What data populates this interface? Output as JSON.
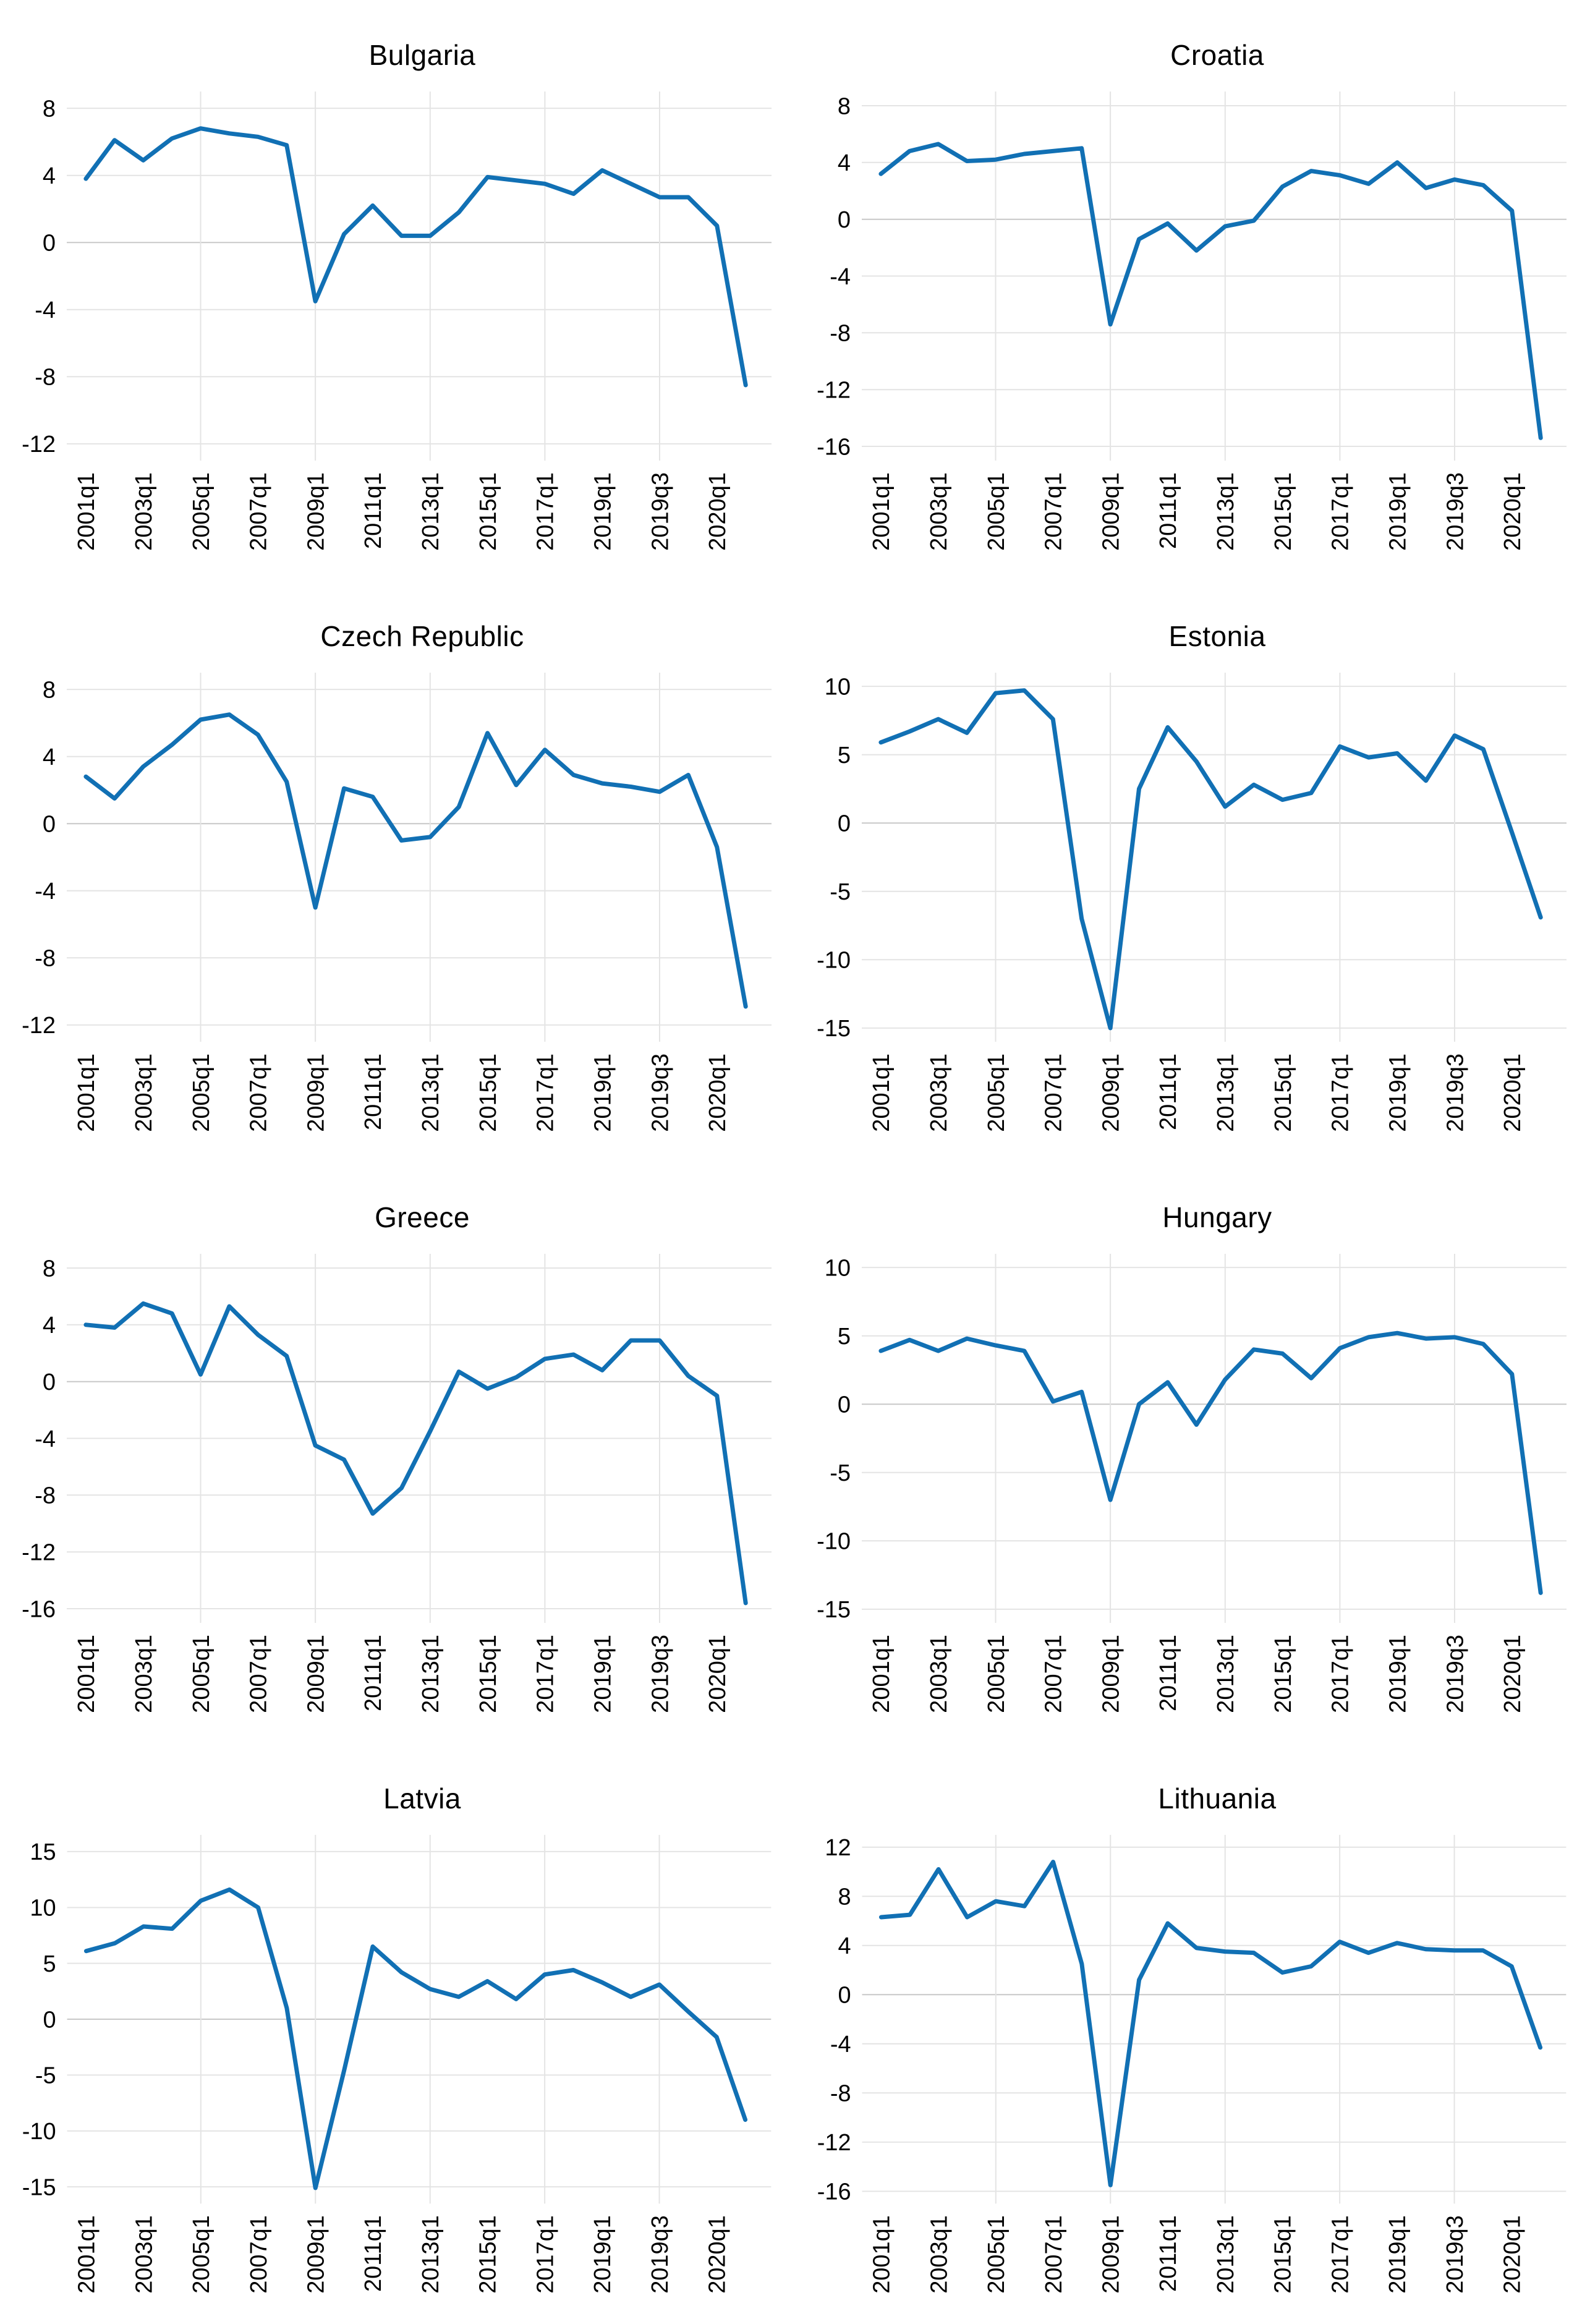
{
  "page": {
    "background": "#ffffff",
    "description": "Grid of eight line charts of quarterly year-over-year GDP growth (percent), 2001q1 to 2020q2, one panel per country"
  },
  "style": {
    "line_color": "#1170b4",
    "grid_color": "#e4e4e4",
    "zero_line_color": "#c8c8c8",
    "text_color": "#000000"
  },
  "chart_data": [
    {
      "type": "line",
      "title": "Bulgaria",
      "x": {
        "labels": [
          "2001q1",
          "2003q1",
          "2005q1",
          "2007q1",
          "2009q1",
          "2011q1",
          "2013q1",
          "2015q1",
          "2017q1",
          "2019q1",
          "2019q3",
          "2020q1"
        ],
        "label_indices": [
          0,
          2,
          4,
          6,
          8,
          10,
          12,
          14,
          16,
          18,
          20,
          22
        ],
        "grid_indices": [
          4,
          8,
          12,
          16,
          20
        ],
        "n_points": 24
      },
      "y": {
        "ticks": [
          8,
          4,
          0,
          -4,
          -8,
          -12
        ],
        "min": -13,
        "max": 9
      },
      "series": [
        {
          "name": "gdp-growth",
          "values": [
            3.8,
            6.1,
            4.9,
            6.2,
            6.8,
            6.5,
            6.3,
            5.8,
            -3.5,
            0.5,
            2.2,
            0.4,
            0.4,
            1.8,
            3.9,
            3.7,
            3.5,
            2.9,
            4.3,
            3.5,
            2.7,
            2.7,
            1.0,
            -8.5
          ]
        }
      ]
    },
    {
      "type": "line",
      "title": "Croatia",
      "x": {
        "labels": [
          "2001q1",
          "2003q1",
          "2005q1",
          "2007q1",
          "2009q1",
          "2011q1",
          "2013q1",
          "2015q1",
          "2017q1",
          "2019q1",
          "2019q3",
          "2020q1"
        ],
        "label_indices": [
          0,
          2,
          4,
          6,
          8,
          10,
          12,
          14,
          16,
          18,
          20,
          22
        ],
        "grid_indices": [
          4,
          8,
          12,
          16,
          20
        ],
        "n_points": 24
      },
      "y": {
        "ticks": [
          8,
          4,
          0,
          -4,
          -8,
          -12,
          -16
        ],
        "min": -17,
        "max": 9
      },
      "series": [
        {
          "name": "gdp-growth",
          "values": [
            3.2,
            4.8,
            5.3,
            4.1,
            4.2,
            4.6,
            4.8,
            5.0,
            -7.4,
            -1.4,
            -0.3,
            -2.2,
            -0.5,
            -0.1,
            2.3,
            3.4,
            3.1,
            2.5,
            4.0,
            2.2,
            2.8,
            2.4,
            0.6,
            -15.4
          ]
        }
      ]
    },
    {
      "type": "line",
      "title": "Czech Republic",
      "x": {
        "labels": [
          "2001q1",
          "2003q1",
          "2005q1",
          "2007q1",
          "2009q1",
          "2011q1",
          "2013q1",
          "2015q1",
          "2017q1",
          "2019q1",
          "2019q3",
          "2020q1"
        ],
        "label_indices": [
          0,
          2,
          4,
          6,
          8,
          10,
          12,
          14,
          16,
          18,
          20,
          22
        ],
        "grid_indices": [
          4,
          8,
          12,
          16,
          20
        ],
        "n_points": 24
      },
      "y": {
        "ticks": [
          8,
          4,
          0,
          -4,
          -8,
          -12
        ],
        "min": -13,
        "max": 9
      },
      "series": [
        {
          "name": "gdp-growth",
          "values": [
            2.8,
            1.5,
            3.4,
            4.7,
            6.2,
            6.5,
            5.3,
            2.5,
            -5.0,
            2.1,
            1.6,
            -1.0,
            -0.8,
            1.0,
            5.4,
            2.3,
            4.4,
            2.9,
            2.4,
            2.2,
            1.9,
            2.9,
            -1.4,
            -10.9
          ]
        }
      ]
    },
    {
      "type": "line",
      "title": "Estonia",
      "x": {
        "labels": [
          "2001q1",
          "2003q1",
          "2005q1",
          "2007q1",
          "2009q1",
          "2011q1",
          "2013q1",
          "2015q1",
          "2017q1",
          "2019q1",
          "2019q3",
          "2020q1"
        ],
        "label_indices": [
          0,
          2,
          4,
          6,
          8,
          10,
          12,
          14,
          16,
          18,
          20,
          22
        ],
        "grid_indices": [
          4,
          8,
          12,
          16,
          20
        ],
        "n_points": 24
      },
      "y": {
        "ticks": [
          10,
          5,
          0,
          -5,
          -10,
          -15
        ],
        "min": -16,
        "max": 11
      },
      "series": [
        {
          "name": "gdp-growth",
          "values": [
            5.9,
            6.7,
            7.6,
            6.6,
            9.5,
            9.7,
            7.6,
            -7.0,
            -15.0,
            2.5,
            7.0,
            4.5,
            1.2,
            2.8,
            1.7,
            2.2,
            5.6,
            4.8,
            5.1,
            3.1,
            6.4,
            5.4,
            -0.7,
            -6.9
          ]
        }
      ]
    },
    {
      "type": "line",
      "title": "Greece",
      "x": {
        "labels": [
          "2001q1",
          "2003q1",
          "2005q1",
          "2007q1",
          "2009q1",
          "2011q1",
          "2013q1",
          "2015q1",
          "2017q1",
          "2019q1",
          "2019q3",
          "2020q1"
        ],
        "label_indices": [
          0,
          2,
          4,
          6,
          8,
          10,
          12,
          14,
          16,
          18,
          20,
          22
        ],
        "grid_indices": [
          4,
          8,
          12,
          16,
          20
        ],
        "n_points": 24
      },
      "y": {
        "ticks": [
          8,
          4,
          0,
          -4,
          -8,
          -12,
          -16
        ],
        "min": -17,
        "max": 9
      },
      "series": [
        {
          "name": "gdp-growth",
          "values": [
            4.0,
            3.8,
            5.5,
            4.8,
            0.5,
            5.3,
            3.3,
            1.8,
            -4.5,
            -5.5,
            -9.3,
            -7.5,
            -3.5,
            0.7,
            -0.5,
            0.3,
            1.6,
            1.9,
            0.8,
            2.9,
            2.9,
            0.4,
            -1.0,
            -15.6
          ]
        }
      ]
    },
    {
      "type": "line",
      "title": "Hungary",
      "x": {
        "labels": [
          "2001q1",
          "2003q1",
          "2005q1",
          "2007q1",
          "2009q1",
          "2011q1",
          "2013q1",
          "2015q1",
          "2017q1",
          "2019q1",
          "2019q3",
          "2020q1"
        ],
        "label_indices": [
          0,
          2,
          4,
          6,
          8,
          10,
          12,
          14,
          16,
          18,
          20,
          22
        ],
        "grid_indices": [
          4,
          8,
          12,
          16,
          20
        ],
        "n_points": 24
      },
      "y": {
        "ticks": [
          10,
          5,
          0,
          -5,
          -10,
          -15
        ],
        "min": -16,
        "max": 11
      },
      "series": [
        {
          "name": "gdp-growth",
          "values": [
            3.9,
            4.7,
            3.9,
            4.8,
            4.3,
            3.9,
            0.2,
            0.9,
            -7.0,
            0.0,
            1.6,
            -1.5,
            1.8,
            4.0,
            3.7,
            1.9,
            4.1,
            4.9,
            5.2,
            4.8,
            4.9,
            4.4,
            2.2,
            -13.8
          ]
        }
      ]
    },
    {
      "type": "line",
      "title": "Latvia",
      "x": {
        "labels": [
          "2001q1",
          "2003q1",
          "2005q1",
          "2007q1",
          "2009q1",
          "2011q1",
          "2013q1",
          "2015q1",
          "2017q1",
          "2019q1",
          "2019q3",
          "2020q1"
        ],
        "label_indices": [
          0,
          2,
          4,
          6,
          8,
          10,
          12,
          14,
          16,
          18,
          20,
          22
        ],
        "grid_indices": [
          4,
          8,
          12,
          16,
          20
        ],
        "n_points": 24
      },
      "y": {
        "ticks": [
          15,
          10,
          5,
          0,
          -5,
          -10,
          -15
        ],
        "min": -16.5,
        "max": 16.5
      },
      "series": [
        {
          "name": "gdp-growth",
          "values": [
            6.1,
            6.8,
            8.3,
            8.1,
            10.6,
            11.6,
            10.0,
            1.0,
            -15.1,
            -4.6,
            6.5,
            4.2,
            2.7,
            2.0,
            3.4,
            1.8,
            4.0,
            4.4,
            3.3,
            2.0,
            3.1,
            0.7,
            -1.6,
            -9.0
          ]
        }
      ]
    },
    {
      "type": "line",
      "title": "Lithuania",
      "x": {
        "labels": [
          "2001q1",
          "2003q1",
          "2005q1",
          "2007q1",
          "2009q1",
          "2011q1",
          "2013q1",
          "2015q1",
          "2017q1",
          "2019q1",
          "2019q3",
          "2020q1"
        ],
        "label_indices": [
          0,
          2,
          4,
          6,
          8,
          10,
          12,
          14,
          16,
          18,
          20,
          22
        ],
        "grid_indices": [
          4,
          8,
          12,
          16,
          20
        ],
        "n_points": 24
      },
      "y": {
        "ticks": [
          12,
          8,
          4,
          0,
          -4,
          -8,
          -12,
          -16
        ],
        "min": -17,
        "max": 13
      },
      "series": [
        {
          "name": "gdp-growth",
          "values": [
            6.3,
            6.5,
            10.2,
            6.3,
            7.6,
            7.2,
            10.8,
            2.5,
            -15.5,
            1.2,
            5.8,
            3.8,
            3.5,
            3.4,
            1.8,
            2.3,
            4.3,
            3.4,
            4.2,
            3.7,
            3.6,
            3.6,
            2.3,
            -4.3
          ]
        }
      ]
    }
  ]
}
